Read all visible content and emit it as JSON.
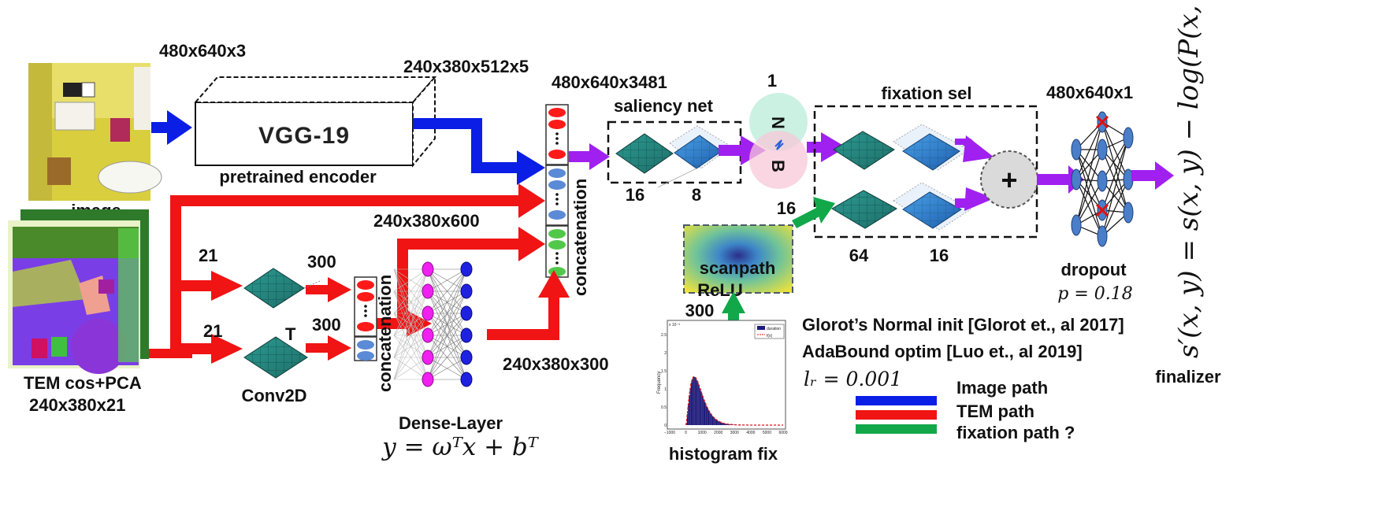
{
  "inputs": {
    "image_label": "image",
    "image_dims": "480x640x3",
    "tem_label": "TEM cos+PCA",
    "tem_dims": "240x380x21"
  },
  "encoder": {
    "name": "VGG-19",
    "caption": "pretrained encoder",
    "output_dims": "240x380x512x5"
  },
  "tem_branch": {
    "channels_top": "21",
    "channels_bottom": "21",
    "conv_out_top": "300",
    "conv_out_bottom": "300",
    "transpose_mark": "T",
    "conv_label": "Conv2D",
    "concat_label": "concatenation",
    "dense_label": "Dense-Layer",
    "dense_formula": "y = ωᵀx + bᵀ",
    "dense_in_dims": "240x380x600",
    "dense_out_dims": "240x380x300"
  },
  "main_concat": {
    "dims": "480x640x3481",
    "label": "concatenation"
  },
  "saliency": {
    "title": "saliency net",
    "filters_a": "16",
    "filters_b": "8"
  },
  "batchnorm": {
    "top": "N",
    "bottom": "B",
    "channels": "1"
  },
  "fixation": {
    "title": "fixation sel",
    "input_channels": "16",
    "filters_a": "64",
    "filters_b": "16",
    "plus": "+"
  },
  "scanpath": {
    "label_line1": "scanpath",
    "label_line2": "ReLU",
    "dims": "300"
  },
  "histogram": {
    "caption": "histogram fix",
    "y_axis_label": "Frequency",
    "scale_mark": "x 10⁻³",
    "legend": [
      "duration",
      "f(x)"
    ],
    "x_ticks": [
      "−1000",
      "0",
      "1000",
      "2000",
      "3000",
      "4000",
      "5000",
      "6000"
    ],
    "y_ticks": [
      "0",
      "0.5",
      "1",
      "1.5",
      "2",
      "2.5"
    ]
  },
  "output": {
    "dims": "480x640x1",
    "dropout_label": "dropout",
    "dropout_p": "p = 0.18",
    "finalizer_label": "finalizer",
    "formula": "s′(x, y) = s(x, y) − log(P(x, y))"
  },
  "training": {
    "init": "Glorot’s Normal init [Glorot et., al 2017]",
    "optim": "AdaBound optim [Luo et., al 2019]",
    "lr": "lᵣ = 0.001"
  },
  "legend": [
    {
      "label": "Image path",
      "color": "#0a1ee6"
    },
    {
      "label": "TEM path",
      "color": "#f01414"
    },
    {
      "label": "fixation path ?",
      "color": "#12a84a"
    }
  ],
  "colors": {
    "image_path": "#0a1ee6",
    "tem_path": "#f01414",
    "fixation_path": "#12a84a",
    "flow": "#a020f0"
  }
}
